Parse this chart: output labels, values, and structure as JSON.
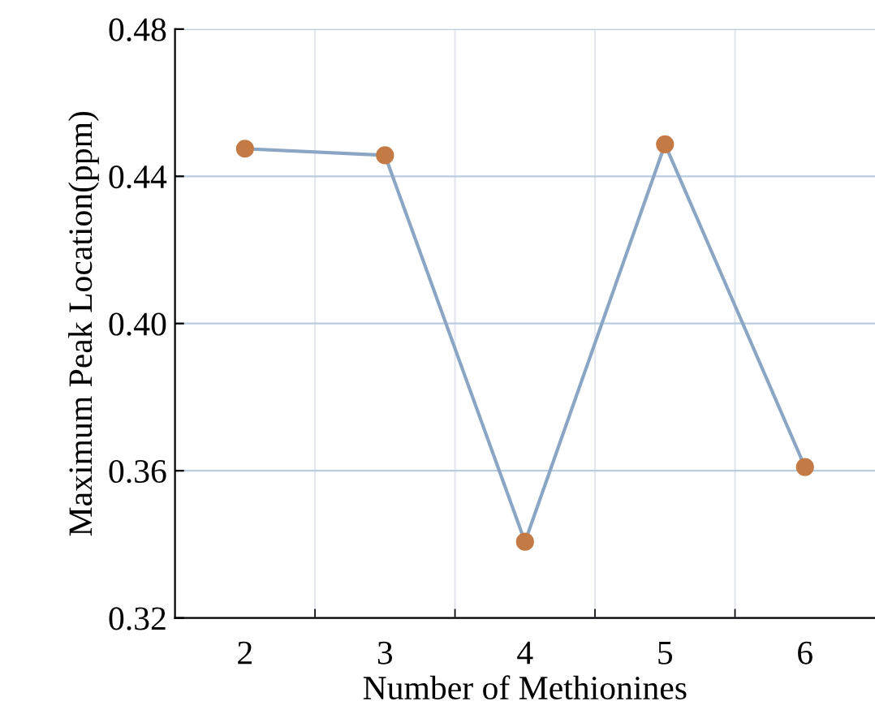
{
  "chart_data": {
    "type": "line",
    "xlabel": "Number of Methionines",
    "ylabel": "Maximum Peak Location(ppm)",
    "categories": [
      "2",
      "3",
      "4",
      "5",
      "6"
    ],
    "series": [
      {
        "color": "#8aa6c4",
        "values": [
          0.4475,
          0.4457,
          0.3407,
          0.4487,
          0.361
        ]
      }
    ],
    "marker": "circle",
    "line_style": "solid",
    "ylim": [
      0.32,
      0.48
    ],
    "yticks": [
      {
        "value": 0.32,
        "label": "0.32"
      },
      {
        "value": 0.36,
        "label": "0.36"
      },
      {
        "value": 0.4,
        "label": "0.40"
      },
      {
        "value": 0.44,
        "label": "0.44"
      },
      {
        "value": 0.48,
        "label": "0.48"
      }
    ],
    "grid": true,
    "legend": false
  }
}
